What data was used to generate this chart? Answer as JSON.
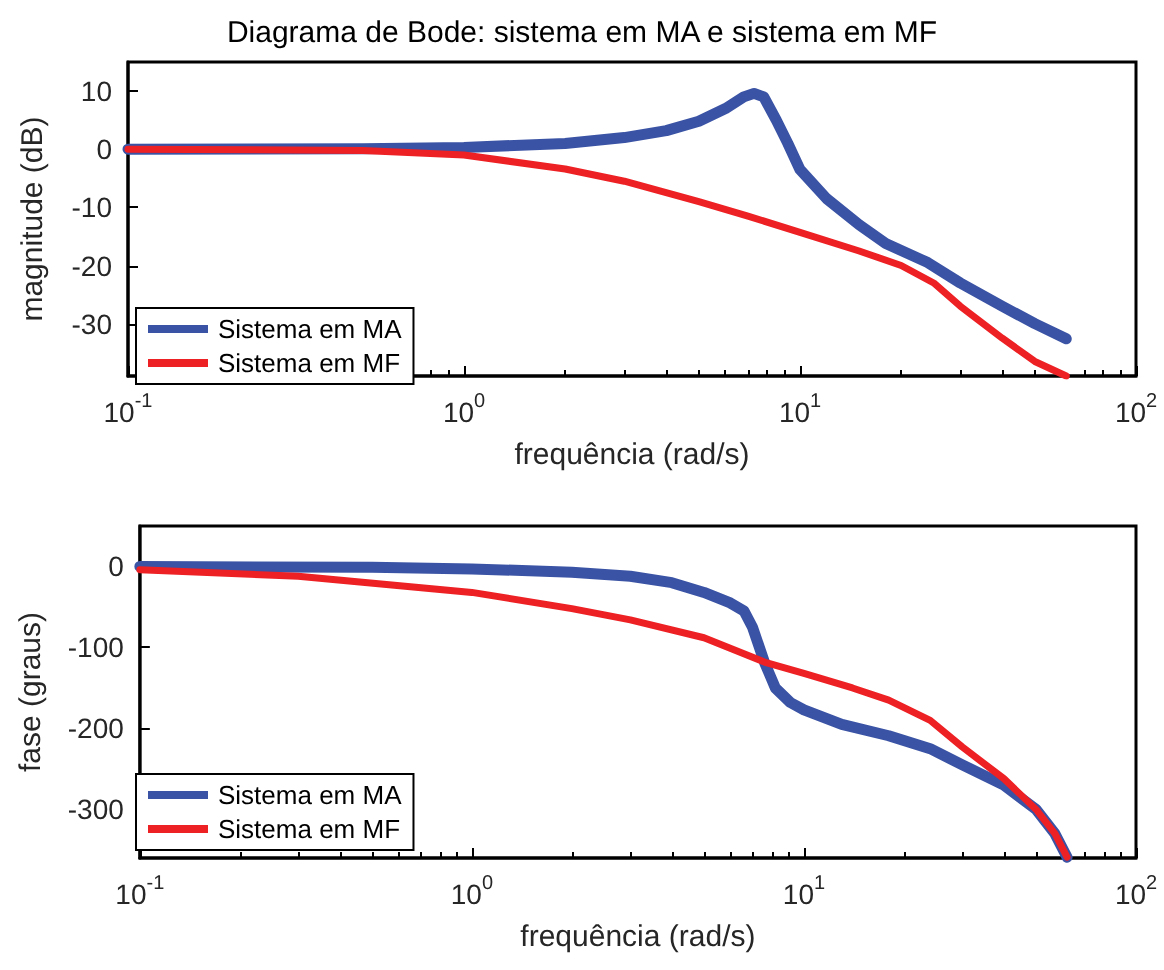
{
  "chart_data": [
    {
      "type": "line",
      "title": "Diagrama de Bode: sistema em MA e sistema em MF",
      "xlabel": "frequência (rad/s)",
      "ylabel": "magnitude (dB)",
      "log": "x",
      "legend": "bottom left",
      "xlim": [
        0.1,
        100
      ],
      "xticks": [
        {
          "value": 0.1,
          "label": "10$^{-1}$"
        },
        {
          "value": 1,
          "label": "10$^{0}$"
        },
        {
          "value": 10,
          "label": "10$^{1}$"
        },
        {
          "value": 100,
          "label": "10$^{2}$"
        }
      ],
      "ylim": [
        -39,
        15
      ],
      "yticks": [
        -30,
        -20,
        -10,
        0,
        10
      ],
      "series": [
        {
          "name": "Sistema em MA",
          "color": "#3a53a4",
          "x": [
            0.1,
            0.5,
            1,
            2,
            3,
            4,
            5,
            6,
            6.8,
            7.3,
            7.8,
            8.5,
            9.2,
            10,
            12,
            15,
            18,
            24,
            30,
            40,
            50,
            62
          ],
          "values": [
            0,
            0.1,
            0.3,
            1,
            2,
            3.2,
            4.8,
            7,
            9,
            9.6,
            9,
            5,
            1,
            -3.5,
            -8.5,
            -13,
            -16.2,
            -19.5,
            -23,
            -27,
            -30,
            -32.6
          ]
        },
        {
          "name": "Sistema em MF",
          "color": "#ed2024",
          "x": [
            0.1,
            0.5,
            1,
            2,
            3,
            5,
            7,
            10,
            15,
            20,
            25,
            30,
            40,
            50,
            62
          ],
          "values": [
            0,
            -0.2,
            -1,
            -3.4,
            -5.5,
            -9,
            -11.5,
            -14.3,
            -17.5,
            -20,
            -23,
            -27,
            -32.5,
            -36.5,
            -39
          ]
        }
      ]
    },
    {
      "type": "line",
      "xlabel": "frequência (rad/s)",
      "ylabel": "fase (graus)",
      "log": "x",
      "legend": "bottom left",
      "xlim": [
        0.1,
        100
      ],
      "xticks": [
        {
          "value": 0.1,
          "label": "10$^{-1}$"
        },
        {
          "value": 1,
          "label": "10$^{0}$"
        },
        {
          "value": 10,
          "label": "10$^{1}$"
        },
        {
          "value": 100,
          "label": "10$^{2}$"
        }
      ],
      "ylim": [
        -360,
        50
      ],
      "yticks": [
        -300,
        -200,
        -100,
        0
      ],
      "series": [
        {
          "name": "Sistema em MA",
          "color": "#3a53a4",
          "x": [
            0.1,
            0.5,
            1,
            2,
            3,
            4,
            5,
            6,
            6.6,
            7,
            7.6,
            8.2,
            9.1,
            10,
            13,
            18,
            24,
            30,
            40,
            50,
            57,
            62
          ],
          "values": [
            0,
            -1,
            -3,
            -7,
            -12,
            -20,
            -32,
            -45,
            -55,
            -75,
            -118,
            -150,
            -168,
            -177,
            -195,
            -209,
            -225,
            -245,
            -270,
            -300,
            -330,
            -359
          ]
        },
        {
          "name": "Sistema em MF",
          "color": "#ed2024",
          "x": [
            0.1,
            0.3,
            1,
            2,
            3,
            5,
            7.6,
            10,
            14,
            18,
            24,
            30,
            40,
            50,
            57,
            62
          ],
          "values": [
            -4,
            -12,
            -32,
            -52,
            -66,
            -88,
            -118,
            -132,
            -150,
            -165,
            -190,
            -223,
            -262,
            -300,
            -330,
            -359
          ]
        }
      ]
    }
  ]
}
